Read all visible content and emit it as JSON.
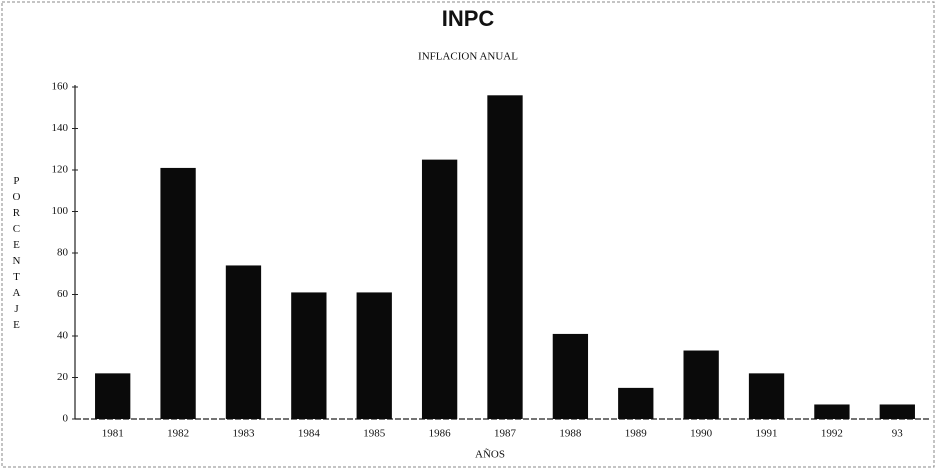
{
  "chart_data": {
    "type": "bar",
    "title": "INPC",
    "subtitle": "INFLACION ANUAL",
    "y_label": "PORCENTAJE",
    "x_label": "AÑOS",
    "categories": [
      "1981",
      "1982",
      "1983",
      "1984",
      "1985",
      "1986",
      "1987",
      "1988",
      "1989",
      "1990",
      "1991",
      "1992",
      "93"
    ],
    "values": [
      22,
      121,
      74,
      61,
      61,
      125,
      156,
      41,
      15,
      33,
      22,
      7,
      7
    ],
    "color": "#0a0a0a",
    "ylim": [
      0,
      160
    ],
    "yticks": [
      0,
      20,
      40,
      60,
      80,
      100,
      120,
      140,
      160
    ],
    "grid": false
  }
}
